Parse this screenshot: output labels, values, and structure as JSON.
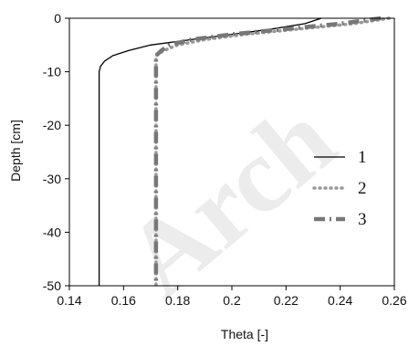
{
  "chart_data": {
    "type": "line",
    "title": "",
    "xlabel": "Theta [-]",
    "ylabel": "Depth [cm]",
    "xlim": [
      0.14,
      0.26
    ],
    "ylim": [
      -50,
      0
    ],
    "x_ticks": [
      "0.14",
      "0.16",
      "0.18",
      "0.2",
      "0.22",
      "0.24",
      "0.26"
    ],
    "y_ticks": [
      "0",
      "-10",
      "-20",
      "-30",
      "-40",
      "-50"
    ],
    "grid": false,
    "legend_position": "right-middle",
    "series": [
      {
        "name": "1",
        "style": "solid",
        "color": "#000000",
        "x": [
          0.233,
          0.227,
          0.215,
          0.2,
          0.185,
          0.17,
          0.162,
          0.156,
          0.153,
          0.1515,
          0.151,
          0.151,
          0.151
        ],
        "y": [
          0,
          -1,
          -2,
          -3,
          -4,
          -5,
          -6,
          -7,
          -8,
          -9,
          -10,
          -30,
          -50
        ]
      },
      {
        "name": "2",
        "style": "dotted",
        "color": "#999999",
        "x": [
          0.258,
          0.245,
          0.225,
          0.205,
          0.19,
          0.18,
          0.175,
          0.172,
          0.172
        ],
        "y": [
          0,
          -1,
          -2,
          -3,
          -4,
          -5,
          -6,
          -7,
          -50
        ]
      },
      {
        "name": "3",
        "style": "dashdot",
        "color": "#777777",
        "x": [
          0.255,
          0.24,
          0.22,
          0.2,
          0.185,
          0.177,
          0.174,
          0.172,
          0.172
        ],
        "y": [
          0,
          -1,
          -2,
          -3,
          -4,
          -5,
          -6,
          -7,
          -50
        ]
      }
    ],
    "watermark": "Arch"
  }
}
